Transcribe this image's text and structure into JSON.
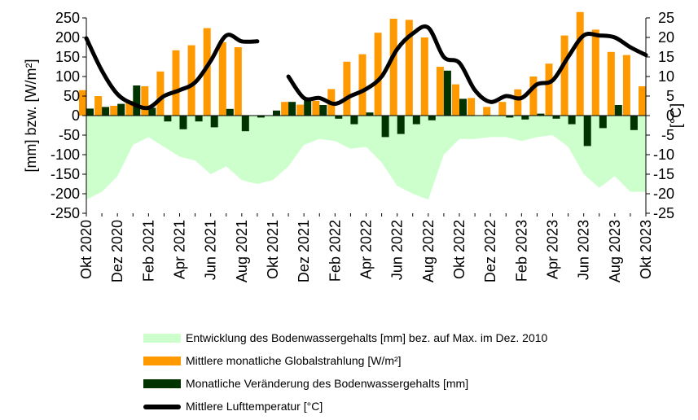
{
  "chart_data": {
    "type": "bar",
    "categories": [
      "Okt 2020",
      "Nov 2020",
      "Dez 2020",
      "Jan 2021",
      "Feb 2021",
      "Mär 2021",
      "Apr 2021",
      "Mai 2021",
      "Jun 2021",
      "Jul 2021",
      "Aug 2021",
      "Sep 2021",
      "Okt 2021",
      "Nov 2021",
      "Dez 2021",
      "Jan 2022",
      "Feb 2022",
      "Mär 2022",
      "Apr 2022",
      "Mai 2022",
      "Jun 2022",
      "Jul 2022",
      "Aug 2022",
      "Sep 2022",
      "Okt 2022",
      "Nov 2022",
      "Dez 2022",
      "Jan 2023",
      "Feb 2023",
      "Mär 2023",
      "Apr 2023",
      "Mai 2023",
      "Jun 2023",
      "Jul 2023",
      "Aug 2023",
      "Sep 2023",
      "Okt 2023"
    ],
    "x_tick_labels": [
      "Okt 2020",
      "Dez 2020",
      "Feb 2021",
      "Apr 2021",
      "Jun 2021",
      "Aug 2021",
      "Okt 2021",
      "Dez 2021",
      "Feb 2022",
      "Apr 2022",
      "Jun 2022",
      "Aug 2022",
      "Okt 2022",
      "Dez 2022",
      "Feb 2023",
      "Apr 2023",
      "Jun 2023",
      "Aug 2023",
      "Okt 2023"
    ],
    "ylabel": "[mm] bzw. [W/m²]",
    "y2label": "[°C]",
    "ylim": [
      -250,
      250
    ],
    "y2lim": [
      -25,
      25
    ],
    "yticks": [
      -250,
      -200,
      -150,
      -100,
      -50,
      0,
      50,
      100,
      150,
      200,
      250
    ],
    "y2ticks": [
      -25,
      -20,
      -15,
      -10,
      -5,
      0,
      5,
      10,
      15,
      20,
      25
    ],
    "colors": {
      "soil_area": "#ccffcc",
      "radiation": "#ff9900",
      "soil_change": "#003300",
      "temperature": "#000000"
    },
    "series": [
      {
        "name": "Entwicklung des Bodenwassergehalts [mm] bez. auf Max. im Dez. 2010",
        "type": "area",
        "axis": "left",
        "values": [
          -215,
          -195,
          -155,
          -75,
          -55,
          -80,
          -105,
          -115,
          -150,
          -130,
          -165,
          -175,
          -165,
          -130,
          -75,
          -60,
          -65,
          -85,
          -80,
          -120,
          -180,
          -200,
          -215,
          -100,
          -60,
          -60,
          -55,
          -55,
          -65,
          -55,
          -50,
          -80,
          -150,
          -185,
          -155,
          -195,
          -195
        ]
      },
      {
        "name": "Mittlere monatliche Globalstrahlung [W/m²]",
        "type": "bar",
        "axis": "left",
        "values": [
          65,
          50,
          25,
          38,
          75,
          113,
          167,
          180,
          224,
          188,
          175,
          null,
          null,
          35,
          28,
          38,
          68,
          138,
          157,
          212,
          248,
          245,
          200,
          125,
          80,
          45,
          22,
          35,
          67,
          100,
          133,
          205,
          265,
          220,
          163,
          155,
          75
        ]
      },
      {
        "name": "Monatliche Veränderung des Bodenwassergehalts [mm]",
        "type": "bar",
        "axis": "left",
        "values": [
          18,
          22,
          30,
          77,
          20,
          -15,
          -35,
          -15,
          -30,
          17,
          -40,
          -5,
          13,
          35,
          42,
          27,
          -8,
          -22,
          8,
          -55,
          -47,
          -22,
          -12,
          115,
          43,
          null,
          null,
          -5,
          -10,
          5,
          -8,
          -22,
          -78,
          -32,
          27,
          -37,
          null
        ]
      },
      {
        "name": "Mittlere Lufttemperatur [°C]",
        "type": "line",
        "axis": "right",
        "values": [
          19.8,
          11.5,
          5.5,
          3,
          2,
          5,
          6.5,
          8.5,
          14,
          20.5,
          19,
          19,
          null,
          10,
          4.5,
          4.5,
          3,
          5,
          6.8,
          10,
          17,
          21,
          22.5,
          15,
          13.5,
          6.5,
          3.5,
          5,
          4.5,
          8,
          9,
          15,
          20.5,
          20.5,
          20,
          17.5,
          15.5
        ]
      }
    ]
  }
}
